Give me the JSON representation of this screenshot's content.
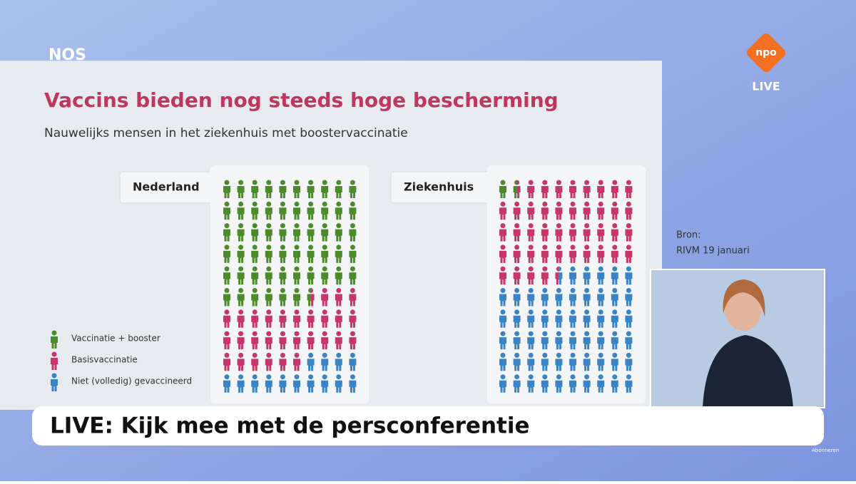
{
  "header": {
    "logo": "NOS",
    "npo": "npo",
    "live_badge": "LIVE"
  },
  "chart_data": {
    "type": "pictogram",
    "title": "Vaccins bieden nog steeds hoge bescherming",
    "subtitle": "Nauwelijks mensen in het ziekenhuis met boostervaccinatie",
    "series": [
      {
        "name": "Vaccinatie + booster",
        "color": "#4d8a2c"
      },
      {
        "name": "Basisvaccinatie",
        "color": "#c73668"
      },
      {
        "name": "Niet (volledig) gevaccineerd",
        "color": "#3a83c4"
      }
    ],
    "panels": [
      {
        "label": "Nederland",
        "values": [
          56.5,
          29.5,
          14
        ]
      },
      {
        "label": "Ziekenhuis",
        "values": [
          1.5,
          43,
          55.5
        ]
      }
    ],
    "source": [
      "Bron:",
      "RIVM 19 januari"
    ]
  },
  "ticker": "LIVE: Kijk mee met de persconferentie",
  "footer": "Abonneren"
}
